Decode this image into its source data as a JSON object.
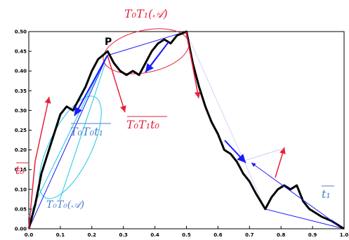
{
  "chart_data": {
    "type": "line",
    "xlim": [
      0.0,
      1.0
    ],
    "ylim": [
      0.0,
      0.5
    ],
    "grid": false,
    "x_ticks": [
      "0.0",
      "0.1",
      "0.2",
      "0.3",
      "0.4",
      "0.5",
      "0.6",
      "0.7",
      "0.8",
      "0.9",
      "1.0"
    ],
    "y_ticks": [
      "0.00",
      "0.05",
      "0.10",
      "0.15",
      "0.20",
      "0.25",
      "0.30",
      "0.35",
      "0.40",
      "0.45",
      "0.50"
    ],
    "series": [
      {
        "color": "#000000",
        "points": [
          [
            0.0,
            0.0
          ],
          [
            0.02,
            0.06
          ],
          [
            0.04,
            0.14
          ],
          [
            0.06,
            0.19
          ],
          [
            0.08,
            0.24
          ],
          [
            0.1,
            0.29
          ],
          [
            0.12,
            0.31
          ],
          [
            0.14,
            0.3
          ],
          [
            0.16,
            0.33
          ],
          [
            0.18,
            0.36
          ],
          [
            0.2,
            0.4
          ],
          [
            0.22,
            0.43
          ],
          [
            0.25,
            0.45
          ],
          [
            0.27,
            0.42
          ],
          [
            0.29,
            0.4
          ],
          [
            0.31,
            0.39
          ],
          [
            0.33,
            0.4
          ],
          [
            0.35,
            0.39
          ],
          [
            0.37,
            0.42
          ],
          [
            0.39,
            0.45
          ],
          [
            0.41,
            0.47
          ],
          [
            0.43,
            0.48
          ],
          [
            0.45,
            0.47
          ],
          [
            0.47,
            0.49
          ],
          [
            0.5,
            0.5
          ],
          [
            0.52,
            0.42
          ],
          [
            0.54,
            0.36
          ],
          [
            0.56,
            0.31
          ],
          [
            0.58,
            0.27
          ],
          [
            0.6,
            0.24
          ],
          [
            0.62,
            0.2
          ],
          [
            0.64,
            0.19
          ],
          [
            0.66,
            0.17
          ],
          [
            0.68,
            0.14
          ],
          [
            0.7,
            0.12
          ],
          [
            0.72,
            0.09
          ],
          [
            0.75,
            0.05
          ],
          [
            0.77,
            0.08
          ],
          [
            0.79,
            0.1
          ],
          [
            0.81,
            0.11
          ],
          [
            0.83,
            0.1
          ],
          [
            0.85,
            0.11
          ],
          [
            0.87,
            0.07
          ],
          [
            0.89,
            0.05
          ],
          [
            0.91,
            0.04
          ],
          [
            0.93,
            0.03
          ],
          [
            0.96,
            0.02
          ],
          [
            1.0,
            0.0
          ]
        ]
      }
    ],
    "point_label": "P",
    "annotations": {
      "top": "T₀T₁(𝒜)",
      "bottom_left": "T₀T₀(𝒜)",
      "t0": "t₀",
      "t1": "t₁",
      "T0T0t1": "T₀T₀t₁",
      "T0T1t0": "T₀T₁t₀"
    },
    "colors": {
      "red": "#e8213a",
      "blue": "#1a1aff",
      "cyan": "#20c8e8",
      "curve": "#000000"
    }
  }
}
